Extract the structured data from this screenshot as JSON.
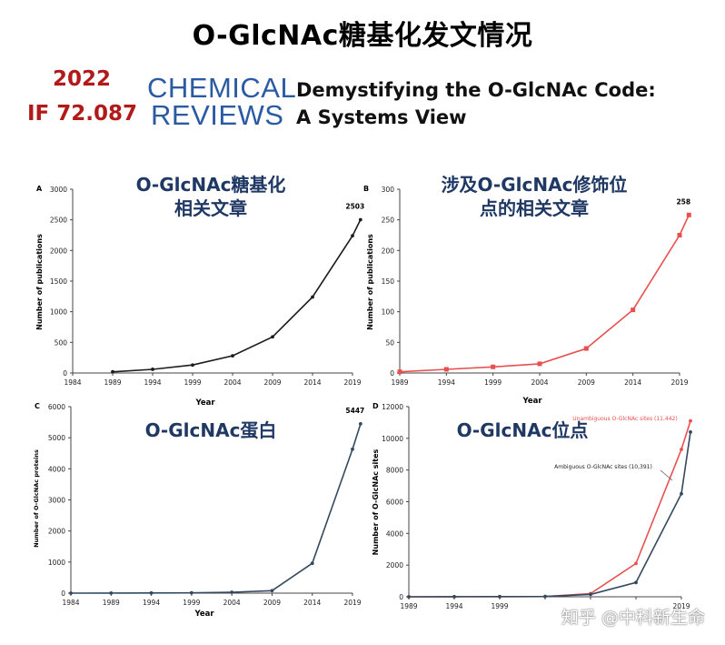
{
  "header": {
    "main_title": "O-GlcNAc糖基化发文情况",
    "journal_year": "2022",
    "journal_if": "IF 72.087",
    "journal_name_line1": "CHEMICAL",
    "journal_name_line2": "REVIEWS",
    "paper_title_line1": "Demystifying the O-GlcNAc Code:",
    "paper_title_line2": "A Systems View"
  },
  "watermark": "知乎 @中科新生命",
  "colors": {
    "header_red": "#b21a1a",
    "journal_blue": "#2a5aa2",
    "overlay_navy": "#1f3864",
    "series_black": "#1c1c1c",
    "series_red": "#e8504f",
    "series_navy": "#34495e"
  },
  "chart_data": [
    {
      "panel": "A",
      "type": "line",
      "overlay_title": [
        "O-GlcNAc糖基化",
        "相关文章"
      ],
      "xlabel": "Year",
      "ylabel": "Number of publications",
      "xlim": [
        1984,
        2019
      ],
      "ylim": [
        0,
        3000
      ],
      "xticks": [
        1984,
        1989,
        1994,
        1999,
        2004,
        2009,
        2014,
        2019
      ],
      "yticks": [
        0,
        500,
        1000,
        1500,
        2000,
        2500,
        3000
      ],
      "series": [
        {
          "color": "#1c1c1c",
          "x": [
            1989,
            1994,
            1999,
            2004,
            2009,
            2014,
            2019,
            2020
          ],
          "y": [
            20,
            60,
            130,
            280,
            590,
            1240,
            2240,
            2503
          ]
        }
      ],
      "annotations": [
        {
          "x": 2020,
          "y": 2503,
          "text": "2503"
        }
      ]
    },
    {
      "panel": "B",
      "type": "line",
      "overlay_title": [
        "涉及O-GlcNAc修饰位",
        "点的相关文章"
      ],
      "xlabel": "Year",
      "ylabel": "Number of publications",
      "xlim": [
        1989,
        2019
      ],
      "ylim": [
        0,
        300
      ],
      "xticks": [
        1989,
        1994,
        1999,
        2004,
        2009,
        2014,
        2019
      ],
      "yticks": [
        0,
        50,
        100,
        150,
        200,
        250,
        300
      ],
      "series": [
        {
          "color": "#e8504f",
          "x": [
            1989,
            1994,
            1999,
            2004,
            2009,
            2014,
            2019,
            2020
          ],
          "y": [
            2,
            6,
            10,
            15,
            40,
            103,
            225,
            258
          ]
        }
      ],
      "annotations": [
        {
          "x": 2020,
          "y": 258,
          "text": "258"
        }
      ]
    },
    {
      "panel": "C",
      "type": "line",
      "overlay_title": [
        "O-GlcNAc蛋白"
      ],
      "xlabel": "Year",
      "ylabel": "Number of O-GlcNAc proteins",
      "xlim": [
        1984,
        2019
      ],
      "ylim": [
        0,
        6000
      ],
      "xticks": [
        1984,
        1989,
        1994,
        1999,
        2004,
        2009,
        2014,
        2019
      ],
      "yticks": [
        0,
        1000,
        2000,
        3000,
        4000,
        5000,
        6000
      ],
      "series": [
        {
          "color": "#34495e",
          "x": [
            1984,
            1989,
            1994,
            1999,
            2004,
            2009,
            2014,
            2019,
            2020
          ],
          "y": [
            0,
            2,
            5,
            10,
            30,
            80,
            960,
            4630,
            5447
          ]
        }
      ],
      "annotations": [
        {
          "x": 2020,
          "y": 5447,
          "text": "5447"
        }
      ]
    },
    {
      "panel": "D",
      "type": "line",
      "overlay_title": [
        "O-GlcNAc位点"
      ],
      "xlabel": "",
      "ylabel": "Number of O-GlcNAc sites",
      "xlim": [
        1989,
        2019
      ],
      "ylim": [
        0,
        12000
      ],
      "xticks": [
        1989,
        1994,
        1999,
        2004,
        2009,
        2014,
        2019
      ],
      "xtick_labels": [
        "1989",
        "1994",
        "1999",
        "",
        "",
        "",
        "2019"
      ],
      "yticks": [
        0,
        2000,
        4000,
        6000,
        8000,
        10000,
        12000
      ],
      "series": [
        {
          "color": "#e8504f",
          "label": "Unambiguous O-GlcNAc sites (11,442)",
          "x": [
            1989,
            1994,
            1999,
            2004,
            2009,
            2014,
            2019,
            2020
          ],
          "y": [
            0,
            5,
            10,
            20,
            200,
            2100,
            9300,
            11100
          ]
        },
        {
          "color": "#34495e",
          "label": "Ambiguous O-GlcNAc sites (10,391)",
          "x": [
            1989,
            1994,
            1999,
            2004,
            2009,
            2014,
            2019,
            2020
          ],
          "y": [
            0,
            5,
            10,
            20,
            150,
            900,
            6500,
            10400
          ]
        }
      ]
    }
  ]
}
